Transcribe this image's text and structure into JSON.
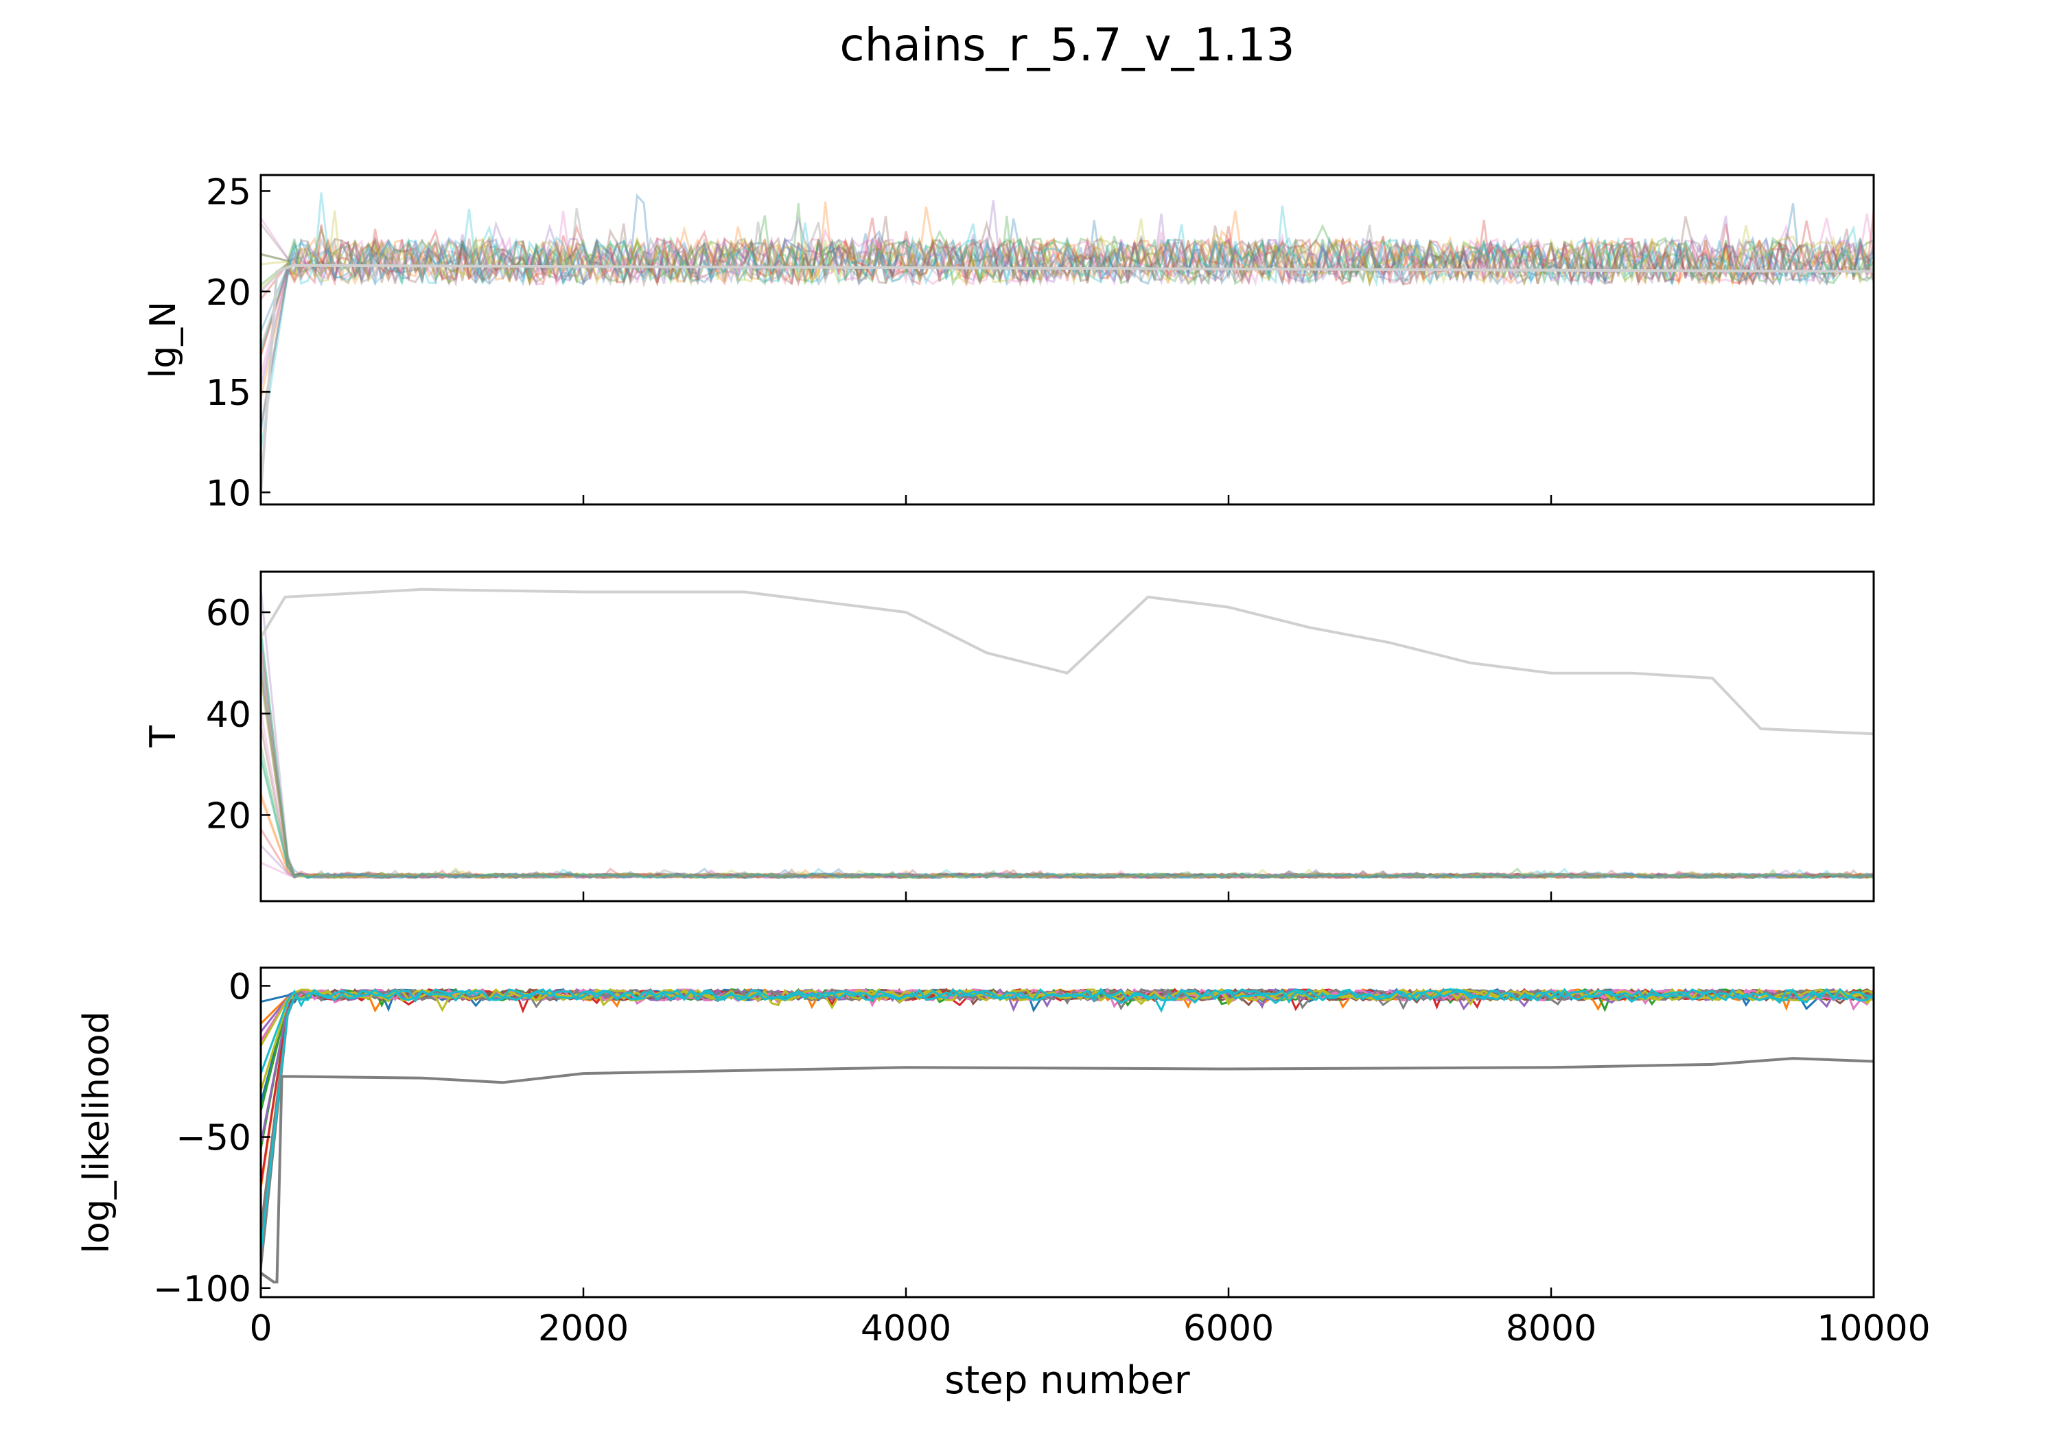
{
  "chart_data": {
    "type": "line",
    "title": "chains_r_5.7_v_1.13",
    "xlabel": "step number",
    "x_range": [
      0,
      10000
    ],
    "x_ticks": [
      0,
      2000,
      4000,
      6000,
      8000,
      10000
    ],
    "grid": false,
    "legend": "none",
    "palette": [
      "#1f77b4",
      "#ff7f0e",
      "#2ca02c",
      "#d62728",
      "#9467bd",
      "#8c564b",
      "#e377c2",
      "#7f7f7f",
      "#bcbd22",
      "#17becf"
    ],
    "panels": [
      {
        "ylabel": "lg_N",
        "ylim": [
          9.4,
          25.8
        ],
        "y_ticks": [
          10,
          15,
          20,
          25
        ],
        "walker_alpha": 0.3,
        "typical_value": 21.5,
        "initial_range": [
          10,
          25
        ],
        "excursion_level": 24,
        "series": [
          {
            "x": [
              0,
              100,
              200,
              10000
            ],
            "values": [
              10,
              21,
              21.3,
              21.0
            ]
          }
        ]
      },
      {
        "ylabel": "T",
        "ylim": [
          3,
          68
        ],
        "y_ticks": [
          20,
          40,
          60
        ],
        "walker_alpha": 0.3,
        "typical_value": 8,
        "initial_range": [
          10,
          65
        ],
        "excursion_level": 9,
        "series": [
          {
            "x": [
              0,
              150,
              1000,
              2000,
              3000,
              3500,
              4000,
              4500,
              5000,
              5500,
              6000,
              6500,
              7000,
              7500,
              8000,
              8500,
              9000,
              9300,
              10000
            ],
            "values": [
              55,
              63,
              64.5,
              64,
              64,
              62,
              60,
              52,
              48,
              63,
              61,
              57,
              54,
              50,
              48,
              48,
              47,
              37,
              36
            ]
          }
        ]
      },
      {
        "ylabel": "log_likelihood",
        "ylim": [
          -103,
          6
        ],
        "y_ticks": [
          0,
          -50,
          -100
        ],
        "walker_alpha": 1,
        "typical_value": -3,
        "initial_range": [
          -98,
          -5
        ],
        "excursion_level": -7,
        "series": [
          {
            "x": [
              0,
              80,
              100,
              130,
              200,
              1000,
              1500,
              2000,
              4000,
              6000,
              8000,
              9000,
              9500,
              10000
            ],
            "values": [
              -95,
              -98,
              -98,
              -30,
              -30,
              -30.5,
              -32,
              -29,
              -27,
              -27.5,
              -27,
              -26,
              -24,
              -25
            ]
          }
        ]
      }
    ]
  }
}
